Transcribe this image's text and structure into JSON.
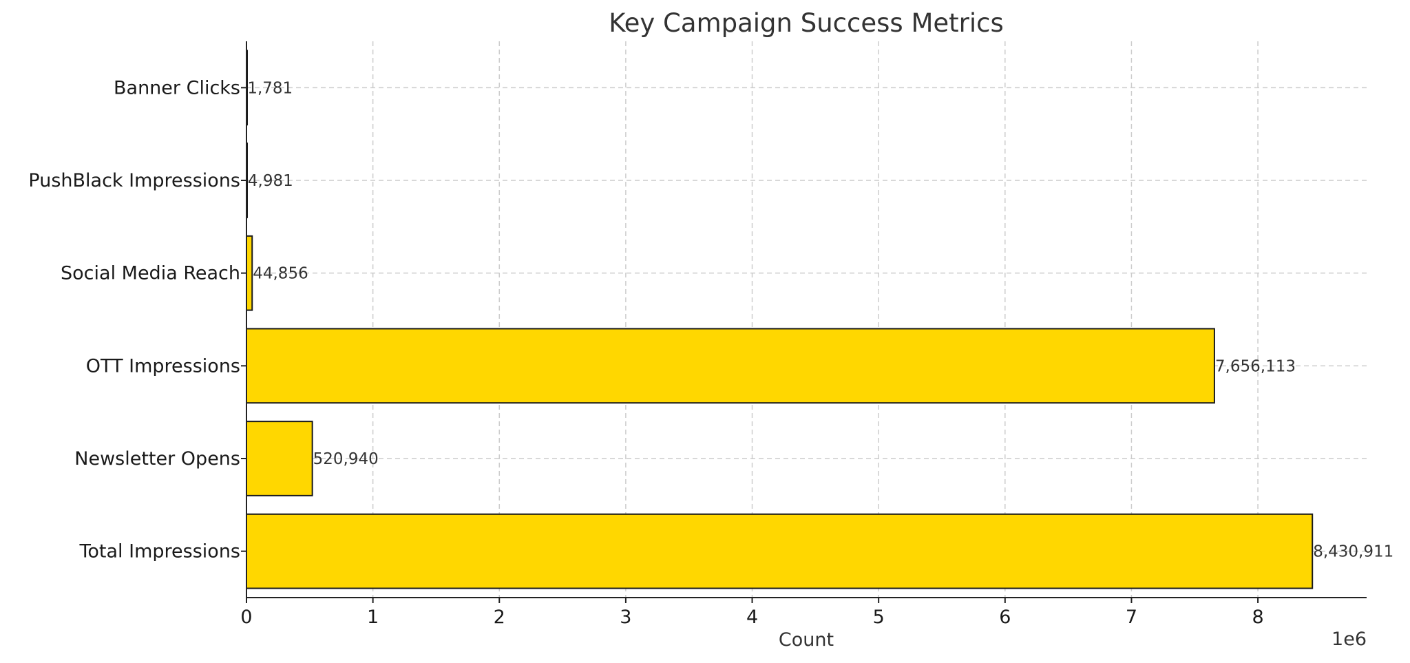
{
  "chart_data": {
    "type": "bar",
    "orientation": "horizontal",
    "title": "Key Campaign Success Metrics",
    "xlabel": "Count",
    "ylabel": "",
    "x_scale_label": "1e6",
    "categories": [
      "Total Impressions",
      "Newsletter Opens",
      "OTT Impressions",
      "Social Media Reach",
      "PushBlack Impressions",
      "Banner Clicks"
    ],
    "values": [
      8430911,
      520940,
      7656113,
      44856,
      4981,
      1781
    ],
    "data_labels": [
      "8,430,911",
      "520,940",
      "7,656,113",
      "44,856",
      "4,981",
      "1,781"
    ],
    "xlim": [
      0,
      8860000
    ],
    "x_ticks": [
      0,
      1000000,
      2000000,
      3000000,
      4000000,
      5000000,
      6000000,
      7000000,
      8000000
    ],
    "x_tick_labels": [
      "0",
      "1",
      "2",
      "3",
      "4",
      "5",
      "6",
      "7",
      "8"
    ],
    "grid": true,
    "bar_color": "#FFD700",
    "bar_edge_color": "#1a1a1a"
  }
}
